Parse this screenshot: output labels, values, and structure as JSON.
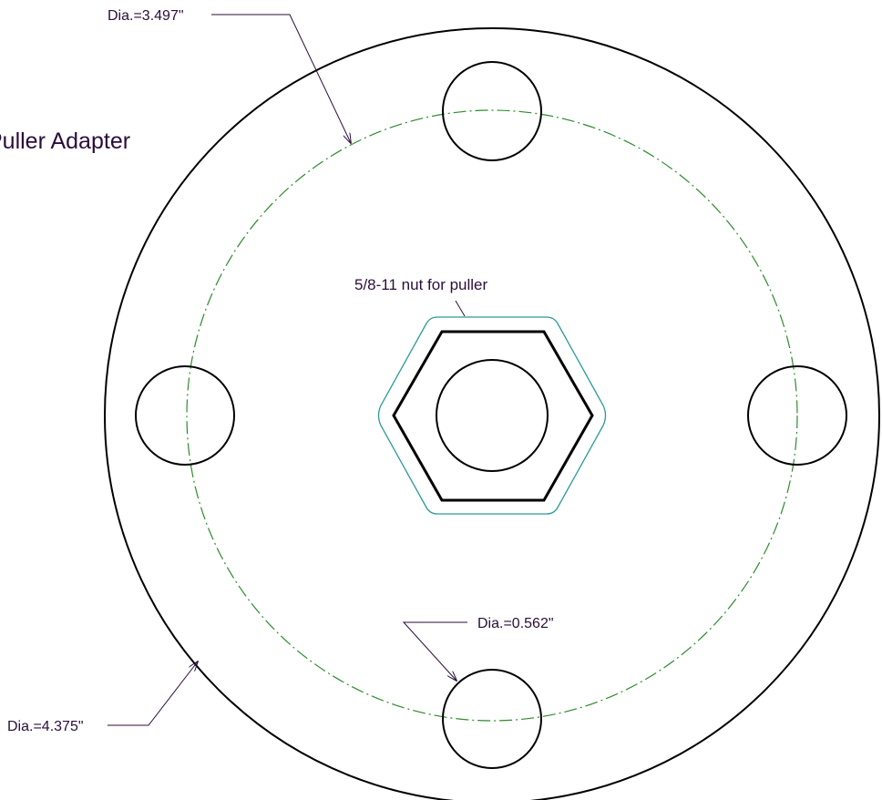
{
  "title": "Puller Adapter",
  "labels": {
    "bolt_circle_dia": "Dia.=3.497\"",
    "outer_dia": "Dia.=4.375\"",
    "hole_dia": "Dia.=0.562\"",
    "nut_note": "5/8-11 nut for puller"
  },
  "colors": {
    "outline": "#000000",
    "bolt_circle": "#2e8b2e",
    "nut_clearance": "#2b9a9a",
    "text": "#2a0e3a",
    "leader": "#2a0e3a"
  },
  "icons": {
    "leader_arrowhead": "arrowhead-icon"
  }
}
